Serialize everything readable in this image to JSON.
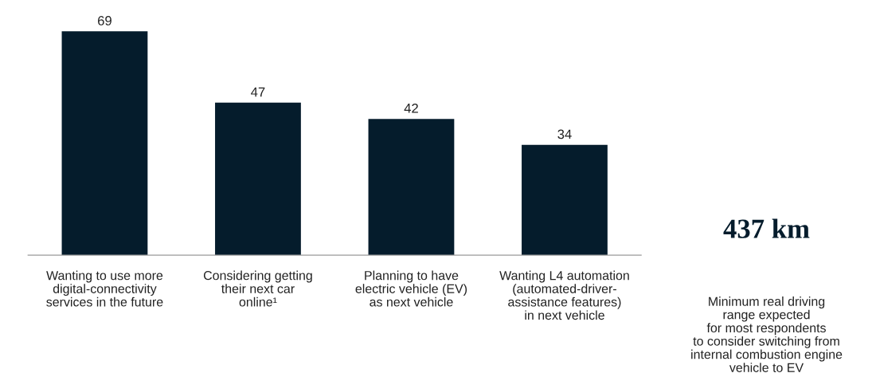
{
  "chart_data": [
    {
      "type": "bar",
      "categories": [
        "Wanting to use more\ndigital-connectivity\nservices in the future",
        "Considering getting\ntheir next car\nonline¹",
        "Planning to have\nelectric vehicle (EV)\nas next vehicle",
        "Wanting L4 automation\n(automated-driver-\nassistance features)\nin next vehicle"
      ],
      "values": [
        69,
        47,
        42,
        34
      ],
      "color": "#051c2c",
      "data_labels": true,
      "tick_labels": "x",
      "grid": false,
      "legend": false
    },
    {
      "type": "other",
      "annotations": [
        "437 km",
        "Minimum real driving\nrange expected\nfor most respondents\nto consider switching from\ninternal combustion engine\nvehicle to EV"
      ]
    }
  ]
}
